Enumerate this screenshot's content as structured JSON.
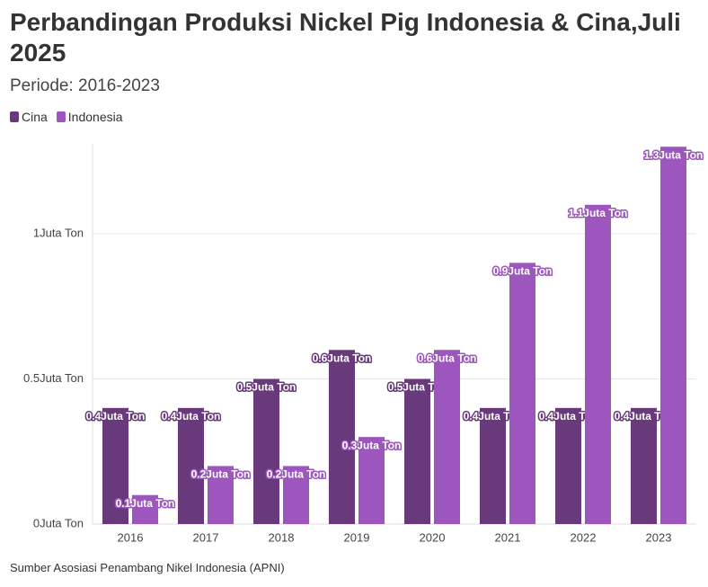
{
  "chart_data": {
    "type": "bar",
    "title": "Perbandingan Produksi Nickel Pig Indonesia & Cina,Juli 2025",
    "subtitle": "Periode: 2016-2023",
    "source": "Sumber Asosiasi Penambang Nikel Indonesia (APNI)",
    "categories": [
      "2016",
      "2017",
      "2018",
      "2019",
      "2020",
      "2021",
      "2022",
      "2023"
    ],
    "series": [
      {
        "name": "Cina",
        "color": "#693a7b",
        "values": [
          0.4,
          0.4,
          0.5,
          0.6,
          0.5,
          0.4,
          0.4,
          0.4
        ],
        "value_labels": [
          "0.4Juta Ton",
          "0.4Juta Ton",
          "0.5Juta Ton",
          "0.6Juta Ton",
          "0.5Juta Ton",
          "0.4Juta Ton",
          "0.4Juta Ton",
          "0.4Juta Ton"
        ]
      },
      {
        "name": "Indonesia",
        "color": "#9c56bd",
        "values": [
          0.1,
          0.2,
          0.2,
          0.3,
          0.6,
          0.9,
          1.1,
          1.3
        ],
        "value_labels": [
          "0.1Juta Ton",
          "0.2Juta Ton",
          "0.2Juta Ton",
          "0.3Juta Ton",
          "0.6Juta Ton",
          "0.9Juta Ton",
          "1.1Juta Ton",
          "1.3Juta Ton"
        ]
      }
    ],
    "ylim": [
      0,
      1.31
    ],
    "yticks": [
      {
        "value": 0,
        "label": "0Juta Ton"
      },
      {
        "value": 0.5,
        "label": "0.5Juta Ton"
      },
      {
        "value": 1,
        "label": "1Juta Ton"
      }
    ],
    "grid": true
  }
}
